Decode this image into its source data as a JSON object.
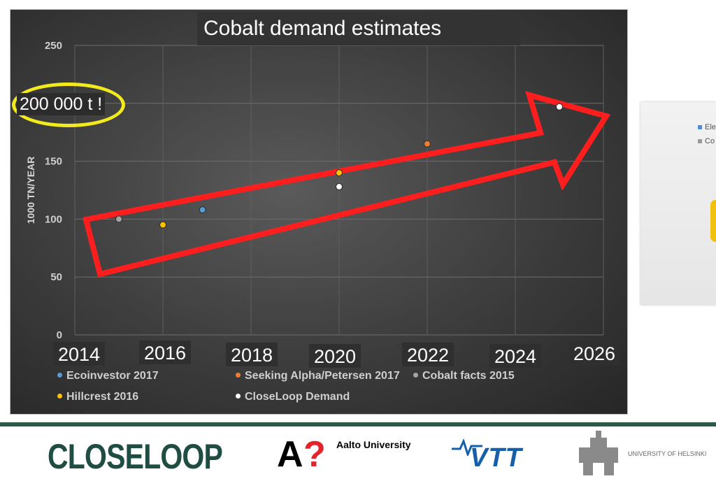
{
  "chart_data": {
    "type": "scatter",
    "title": "Cobalt demand estimates",
    "ylabel": "1000 TN/YEAR",
    "ylim": [
      0,
      250
    ],
    "yticks": [
      0,
      50,
      100,
      150,
      200,
      250
    ],
    "xlim": [
      2014,
      2026
    ],
    "xticks": [
      "2014",
      "2016",
      "2018",
      "2020",
      "2022",
      "2024",
      "2026"
    ],
    "grid": true,
    "legend_position": "bottom",
    "series": [
      {
        "name": "Ecoinvestor 2017",
        "color": "#5b9bd5",
        "points": [
          {
            "x": 2016.9,
            "y": 108
          }
        ]
      },
      {
        "name": "Seeking Alpha/Petersen 2017",
        "color": "#ed7d31",
        "points": [
          {
            "x": 2022.0,
            "y": 165
          }
        ]
      },
      {
        "name": "Cobalt facts 2015",
        "color": "#a5a5a5",
        "points": [
          {
            "x": 2015.0,
            "y": 100
          }
        ]
      },
      {
        "name": "Hillcrest 2016",
        "color": "#ffc000",
        "points": [
          {
            "x": 2016.0,
            "y": 95
          },
          {
            "x": 2020.0,
            "y": 140
          }
        ]
      },
      {
        "name": "CloseLoop Demand",
        "color": "#ffffff",
        "points": [
          {
            "x": 2020.0,
            "y": 128
          },
          {
            "x": 2025.0,
            "y": 197
          }
        ]
      }
    ],
    "annotations": {
      "callout": "200 000 t !"
    }
  },
  "side_card": {
    "legend": [
      "Ele",
      "Co"
    ],
    "colors": [
      "#4a8fd6",
      "#9a9a9a"
    ]
  },
  "footer": {
    "closeloop_logo": "CLOSELOOP",
    "aalto_mark_a": "A",
    "aalto_mark_q": "?",
    "aalto_text": "Aalto University",
    "vtt_logo": "VTT",
    "helsinki_text": "UNIVERSITY OF HELSINKI"
  }
}
